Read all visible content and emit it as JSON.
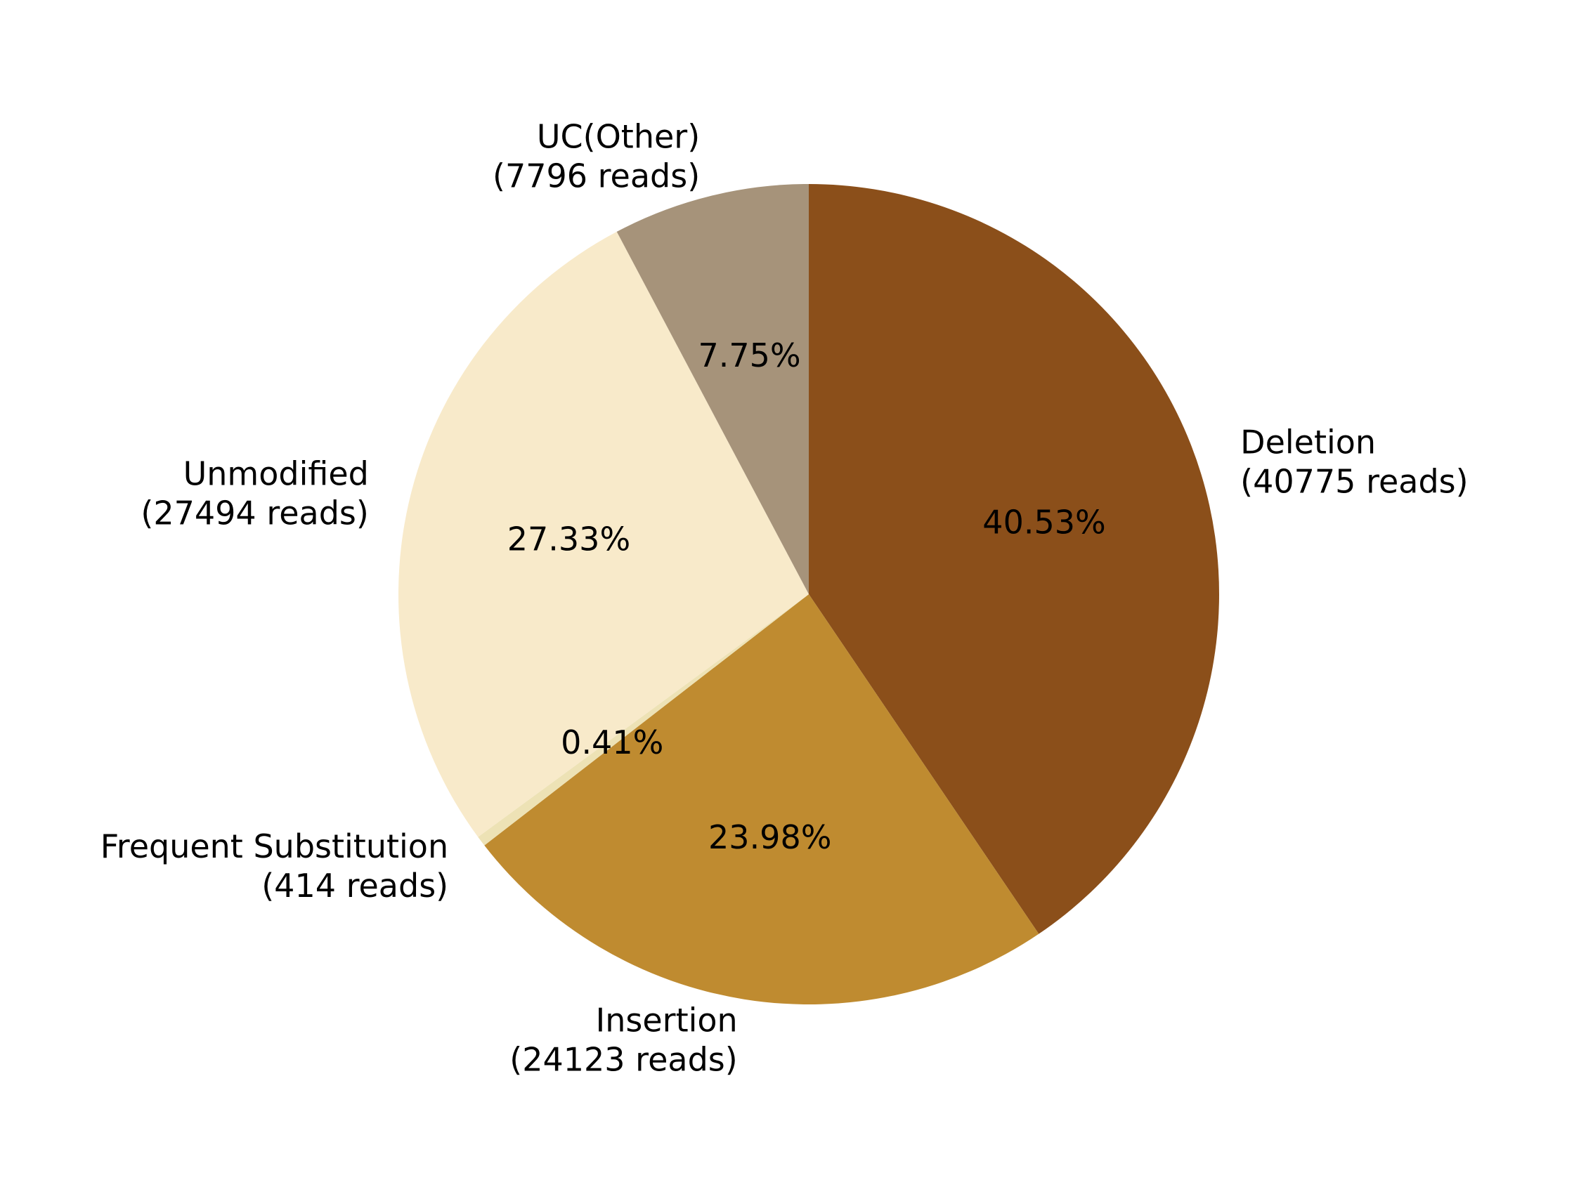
{
  "chart_data": {
    "type": "pie",
    "title": "",
    "start": "top",
    "direction": "clockwise",
    "slices": [
      {
        "name": "Deletion",
        "reads_label": "(40775 reads)",
        "value": 40775,
        "percent_label": "40.53%",
        "color": "#8b4f1a"
      },
      {
        "name": "Insertion",
        "reads_label": "(24123 reads)",
        "value": 24123,
        "percent_label": "23.98%",
        "color": "#bf8b30"
      },
      {
        "name": "Frequent Substitution",
        "reads_label": "(414 reads)",
        "value": 414,
        "percent_label": "0.41%",
        "color": "#ede2b5"
      },
      {
        "name": "Unmodified",
        "reads_label": "(27494 reads)",
        "value": 27494,
        "percent_label": "27.33%",
        "color": "#f8eaca"
      },
      {
        "name": "UC(Other)",
        "reads_label": "(7796 reads)",
        "value": 7796,
        "percent_label": "7.75%",
        "color": "#a6937a"
      }
    ]
  }
}
